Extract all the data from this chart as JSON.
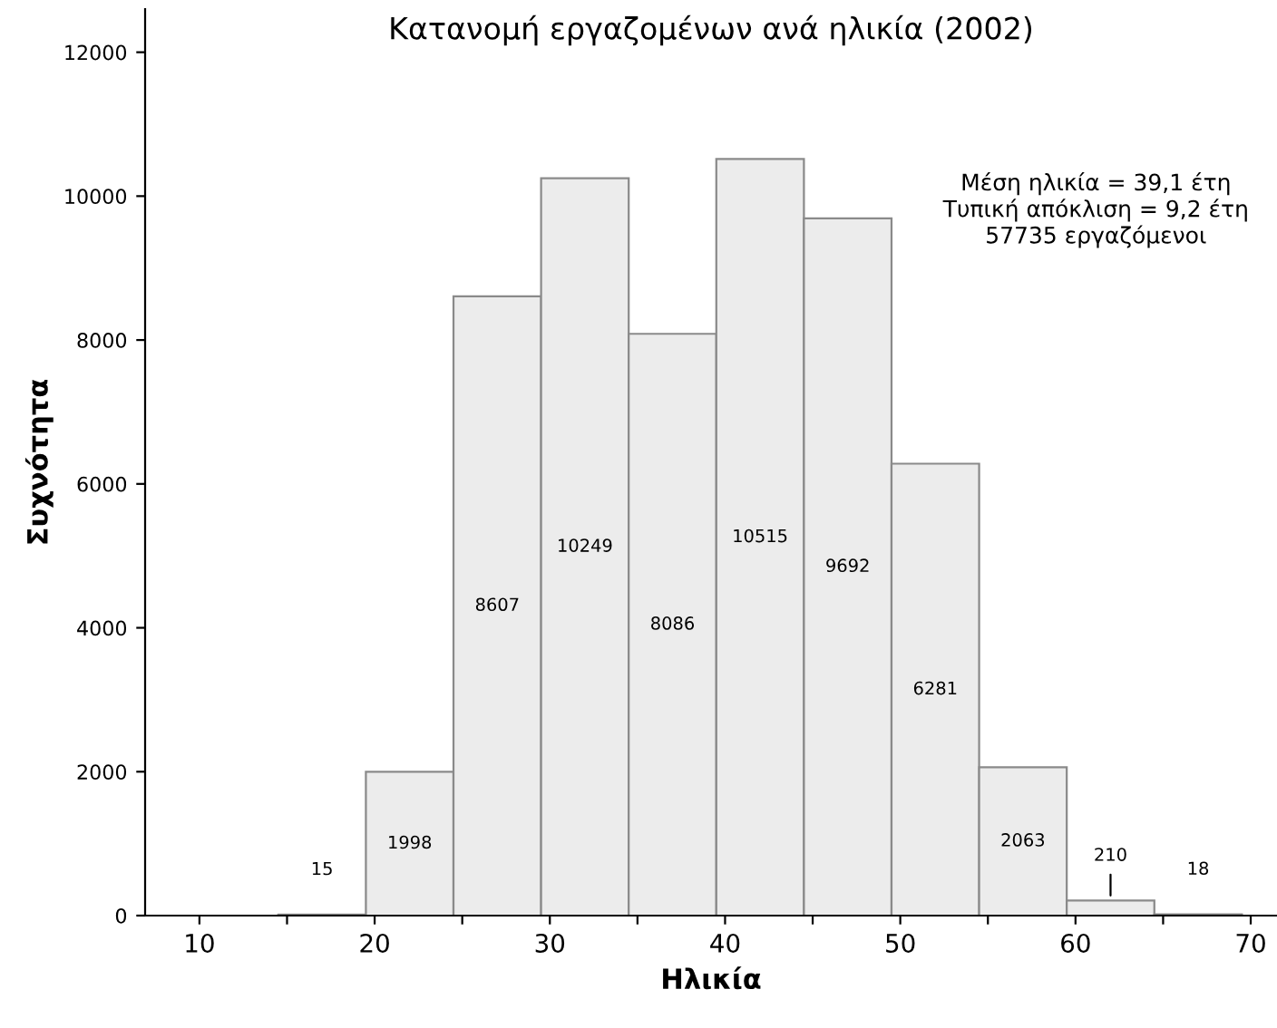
{
  "chart_data": {
    "type": "histogram",
    "title": "Κατανομή εργαζομένων ανά ηλικία (2002)",
    "xlabel": "Ηλικία",
    "ylabel": "Συχνότητα",
    "bins": [
      14.5,
      19.5,
      24.5,
      29.5,
      34.5,
      39.5,
      44.5,
      49.5,
      54.5,
      59.5,
      64.5,
      69.5
    ],
    "values": [
      15,
      1998,
      8607,
      10249,
      8086,
      10515,
      9692,
      6281,
      2063,
      210,
      18
    ],
    "color": "#ececec",
    "data_labels": true,
    "xlim": [
      6.9,
      71.5
    ],
    "xticks": [
      10,
      {
        "value": 15,
        "label": null
      },
      20,
      {
        "value": 25,
        "label": null
      },
      30,
      {
        "value": 35,
        "label": null
      },
      40,
      {
        "value": 45,
        "label": null
      },
      50,
      {
        "value": 55,
        "label": null
      },
      60,
      {
        "value": 65,
        "label": null
      },
      70
    ],
    "ylim": [
      0,
      12600
    ],
    "yticks": [
      0,
      2000,
      4000,
      6000,
      8000,
      10000,
      12000
    ],
    "grid": false,
    "legend": false,
    "annotations": [
      "Μέση ηλικία = 39,1 έτη\nΤυπική απόκλιση = 9,2 έτη\n57735 εργαζόμενοι"
    ]
  }
}
